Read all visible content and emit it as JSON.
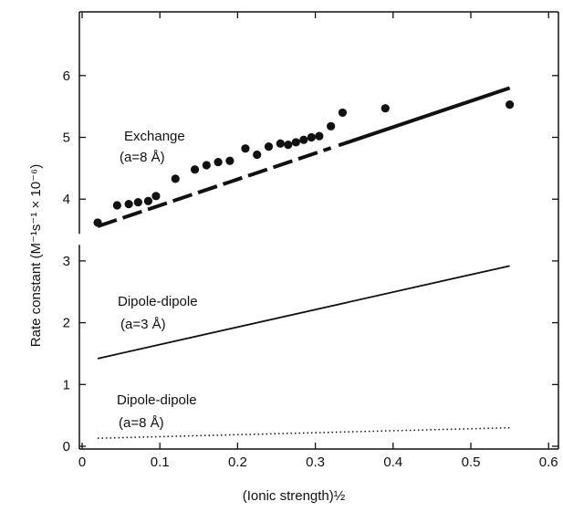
{
  "chart_data": {
    "type": "scatter",
    "title": "",
    "xlabel": "(Ionic strength)½",
    "ylabel": "Rate constant (M⁻¹s⁻¹ × 10⁻⁶)",
    "xlim": [
      0,
      0.62
    ],
    "ylim": [
      0,
      7
    ],
    "x_ticks": [
      "0",
      "0.1",
      "0.2",
      "0.3",
      "0.4",
      "0.5",
      "0.6"
    ],
    "x_tick_values": [
      0,
      0.1,
      0.2,
      0.3,
      0.4,
      0.5,
      0.6
    ],
    "y_ticks": [
      "0",
      "1",
      "2",
      "3",
      "4",
      "5",
      "6"
    ],
    "y_tick_values": [
      0,
      1,
      2,
      3,
      4,
      5,
      6
    ],
    "axis_break_y": 3.35,
    "grid": false,
    "points": {
      "x": [
        0.02,
        0.045,
        0.06,
        0.072,
        0.085,
        0.095,
        0.12,
        0.145,
        0.16,
        0.175,
        0.19,
        0.21,
        0.225,
        0.24,
        0.255,
        0.265,
        0.275,
        0.285,
        0.295,
        0.305,
        0.32,
        0.335,
        0.39,
        0.55
      ],
      "y": [
        3.62,
        3.9,
        3.92,
        3.95,
        3.97,
        4.05,
        4.33,
        4.48,
        4.55,
        4.6,
        4.62,
        4.82,
        4.72,
        4.85,
        4.9,
        4.88,
        4.92,
        4.96,
        5.0,
        5.02,
        5.18,
        5.4,
        5.47,
        5.53
      ]
    },
    "lines": [
      {
        "style": "thick",
        "x": [
          0.02,
          0.55
        ],
        "y": [
          3.56,
          5.8
        ],
        "dash_gap_x": [
          0.32,
          0.33
        ]
      },
      {
        "style": "solid",
        "x": [
          0.02,
          0.55
        ],
        "y": [
          1.42,
          2.92
        ]
      },
      {
        "style": "dotted",
        "x": [
          0.02,
          0.55
        ],
        "y": [
          0.13,
          0.3
        ]
      }
    ],
    "annotations": [
      {
        "line1": "Exchange",
        "line2": "(a=8 Å)"
      },
      {
        "line1": "Dipole-dipole",
        "line2": "(a=3 Å)"
      },
      {
        "line1": "Dipole-dipole",
        "line2": "(a=8 Å)"
      }
    ]
  }
}
